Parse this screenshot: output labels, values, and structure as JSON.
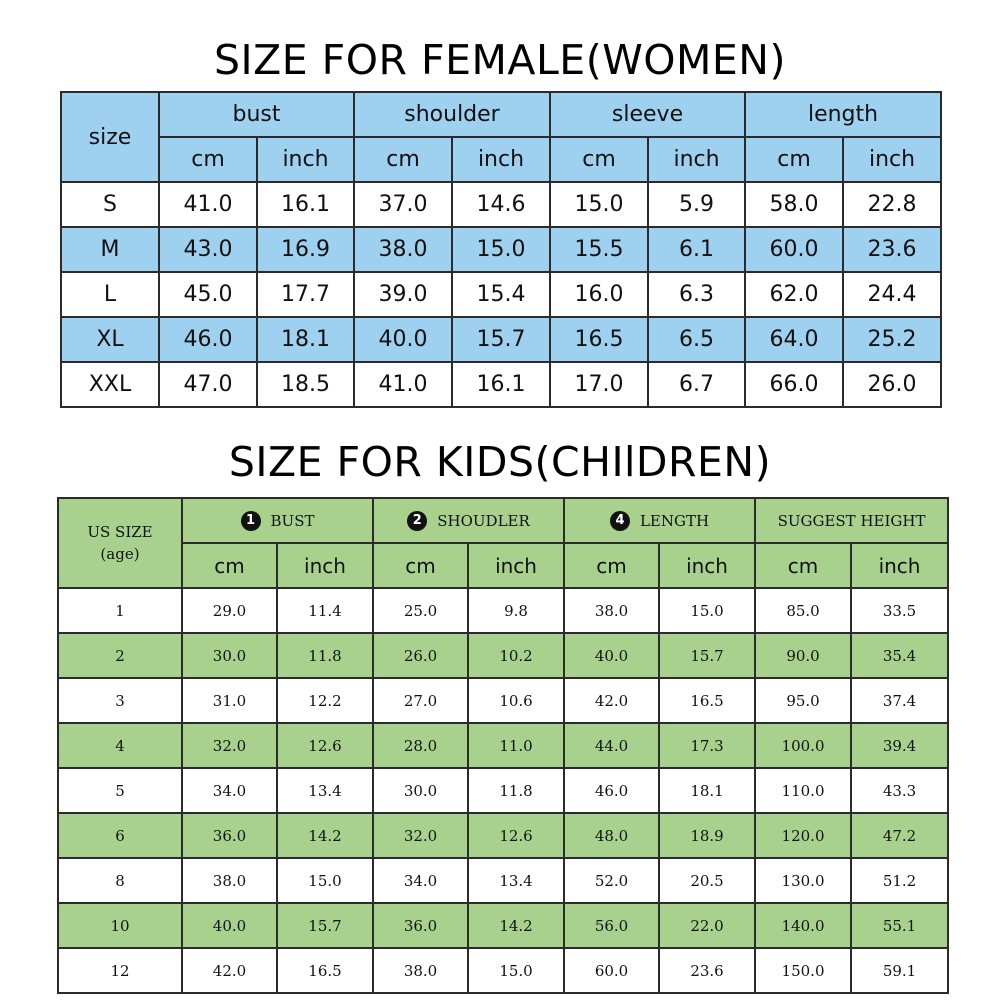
{
  "women": {
    "title": "SIZE FOR FEMALE(WOMEN)",
    "size_header": "size",
    "groups": [
      "bust",
      "shoulder",
      "sleeve",
      "length"
    ],
    "unit_cm": "cm",
    "unit_inch": "inch",
    "rows": [
      [
        "S",
        "41.0",
        "16.1",
        "37.0",
        "14.6",
        "15.0",
        "5.9",
        "58.0",
        "22.8"
      ],
      [
        "M",
        "43.0",
        "16.9",
        "38.0",
        "15.0",
        "15.5",
        "6.1",
        "60.0",
        "23.6"
      ],
      [
        "L",
        "45.0",
        "17.7",
        "39.0",
        "15.4",
        "16.0",
        "6.3",
        "62.0",
        "24.4"
      ],
      [
        "XL",
        "46.0",
        "18.1",
        "40.0",
        "15.7",
        "16.5",
        "6.5",
        "64.0",
        "25.2"
      ],
      [
        "XXL",
        "47.0",
        "18.5",
        "41.0",
        "16.1",
        "17.0",
        "6.7",
        "66.0",
        "26.0"
      ]
    ],
    "colors": {
      "header": "#9ed0f0",
      "stripe": "#9ed0f0"
    }
  },
  "kids": {
    "title": "SIZE FOR KIDS(CHIlDREN)",
    "size_header_line1": "US SIZE",
    "size_header_line2": "(age)",
    "groups": [
      {
        "badge": "1",
        "label": "BUST"
      },
      {
        "badge": "2",
        "label": "SHOUDLER"
      },
      {
        "badge": "4",
        "label": "LENGTH"
      },
      {
        "badge": "",
        "label": "SUGGEST HEIGHT"
      }
    ],
    "unit_cm": "cm",
    "unit_inch": "inch",
    "rows": [
      [
        "1",
        "29.0",
        "11.4",
        "25.0",
        "9.8",
        "38.0",
        "15.0",
        "85.0",
        "33.5"
      ],
      [
        "2",
        "30.0",
        "11.8",
        "26.0",
        "10.2",
        "40.0",
        "15.7",
        "90.0",
        "35.4"
      ],
      [
        "3",
        "31.0",
        "12.2",
        "27.0",
        "10.6",
        "42.0",
        "16.5",
        "95.0",
        "37.4"
      ],
      [
        "4",
        "32.0",
        "12.6",
        "28.0",
        "11.0",
        "44.0",
        "17.3",
        "100.0",
        "39.4"
      ],
      [
        "5",
        "34.0",
        "13.4",
        "30.0",
        "11.8",
        "46.0",
        "18.1",
        "110.0",
        "43.3"
      ],
      [
        "6",
        "36.0",
        "14.2",
        "32.0",
        "12.6",
        "48.0",
        "18.9",
        "120.0",
        "47.2"
      ],
      [
        "8",
        "38.0",
        "15.0",
        "34.0",
        "13.4",
        "52.0",
        "20.5",
        "130.0",
        "51.2"
      ],
      [
        "10",
        "40.0",
        "15.7",
        "36.0",
        "14.2",
        "56.0",
        "22.0",
        "140.0",
        "55.1"
      ],
      [
        "12",
        "42.0",
        "16.5",
        "38.0",
        "15.0",
        "60.0",
        "23.6",
        "150.0",
        "59.1"
      ]
    ],
    "colors": {
      "header": "#a9d18e",
      "stripe": "#a9d18e"
    }
  }
}
